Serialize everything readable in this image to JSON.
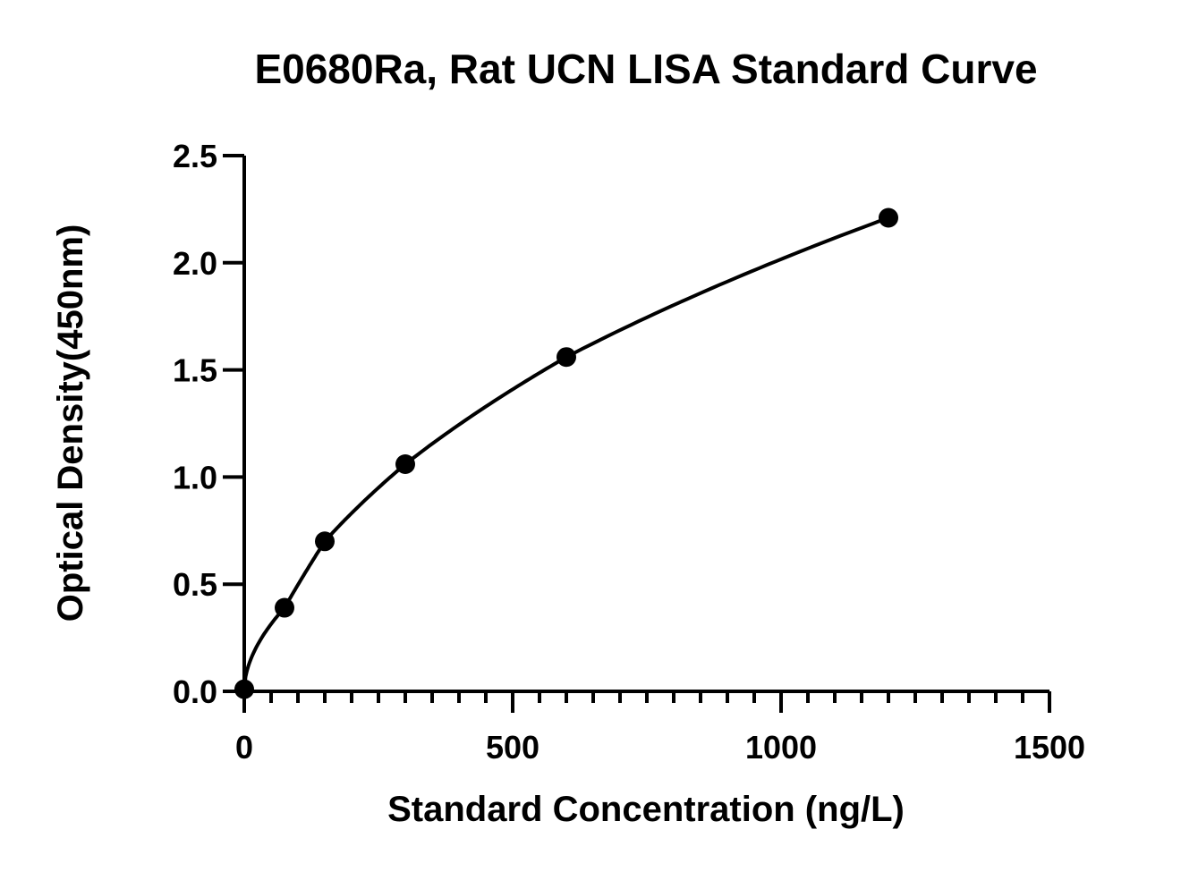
{
  "chart_data": {
    "type": "scatter",
    "title": "E0680Ra, Rat UCN LISA  Standard Curve",
    "xlabel": "Standard Concentration (ng/L)",
    "ylabel": "Optical Density(450nm)",
    "xlim": [
      0,
      1500
    ],
    "ylim": [
      0,
      2.5
    ],
    "x_ticks": [
      "0",
      "500",
      "1000",
      "1500"
    ],
    "y_ticks": [
      "0.0",
      "0.5",
      "1.0",
      "1.5",
      "2.0",
      "2.5"
    ],
    "grid": false,
    "legend": "none",
    "series": [
      {
        "x": [
          0,
          75,
          150,
          300,
          600,
          1200
        ],
        "y": [
          0.01,
          0.39,
          0.7,
          1.06,
          1.56,
          2.21
        ],
        "fit_curve": true
      }
    ],
    "colors": {
      "marks": "#000000",
      "axis": "#000000"
    }
  }
}
